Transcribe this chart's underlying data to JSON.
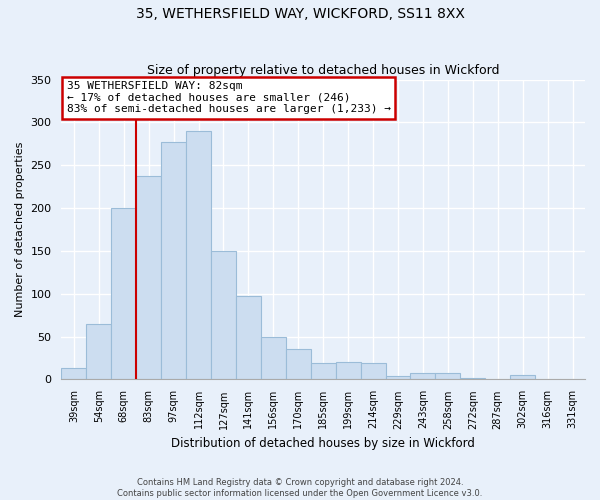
{
  "title": "35, WETHERSFIELD WAY, WICKFORD, SS11 8XX",
  "subtitle": "Size of property relative to detached houses in Wickford",
  "xlabel": "Distribution of detached houses by size in Wickford",
  "ylabel": "Number of detached properties",
  "bar_labels": [
    "39sqm",
    "54sqm",
    "68sqm",
    "83sqm",
    "97sqm",
    "112sqm",
    "127sqm",
    "141sqm",
    "156sqm",
    "170sqm",
    "185sqm",
    "199sqm",
    "214sqm",
    "229sqm",
    "243sqm",
    "258sqm",
    "272sqm",
    "287sqm",
    "302sqm",
    "316sqm",
    "331sqm"
  ],
  "bar_heights": [
    13,
    65,
    200,
    238,
    277,
    290,
    150,
    97,
    49,
    35,
    19,
    20,
    19,
    4,
    7,
    7,
    2,
    0,
    5,
    0,
    0
  ],
  "bar_color": "#ccddf0",
  "bar_edge_color": "#9bbcd8",
  "vline_color": "#cc0000",
  "ylim": [
    0,
    350
  ],
  "yticks": [
    0,
    50,
    100,
    150,
    200,
    250,
    300,
    350
  ],
  "annotation_title": "35 WETHERSFIELD WAY: 82sqm",
  "annotation_line1": "← 17% of detached houses are smaller (246)",
  "annotation_line2": "83% of semi-detached houses are larger (1,233) →",
  "annotation_box_color": "#ffffff",
  "annotation_box_edge": "#cc0000",
  "footer_line1": "Contains HM Land Registry data © Crown copyright and database right 2024.",
  "footer_line2": "Contains public sector information licensed under the Open Government Licence v3.0.",
  "background_color": "#e8f0fa",
  "plot_bg_color": "#e8f0fa",
  "grid_color": "#ffffff"
}
